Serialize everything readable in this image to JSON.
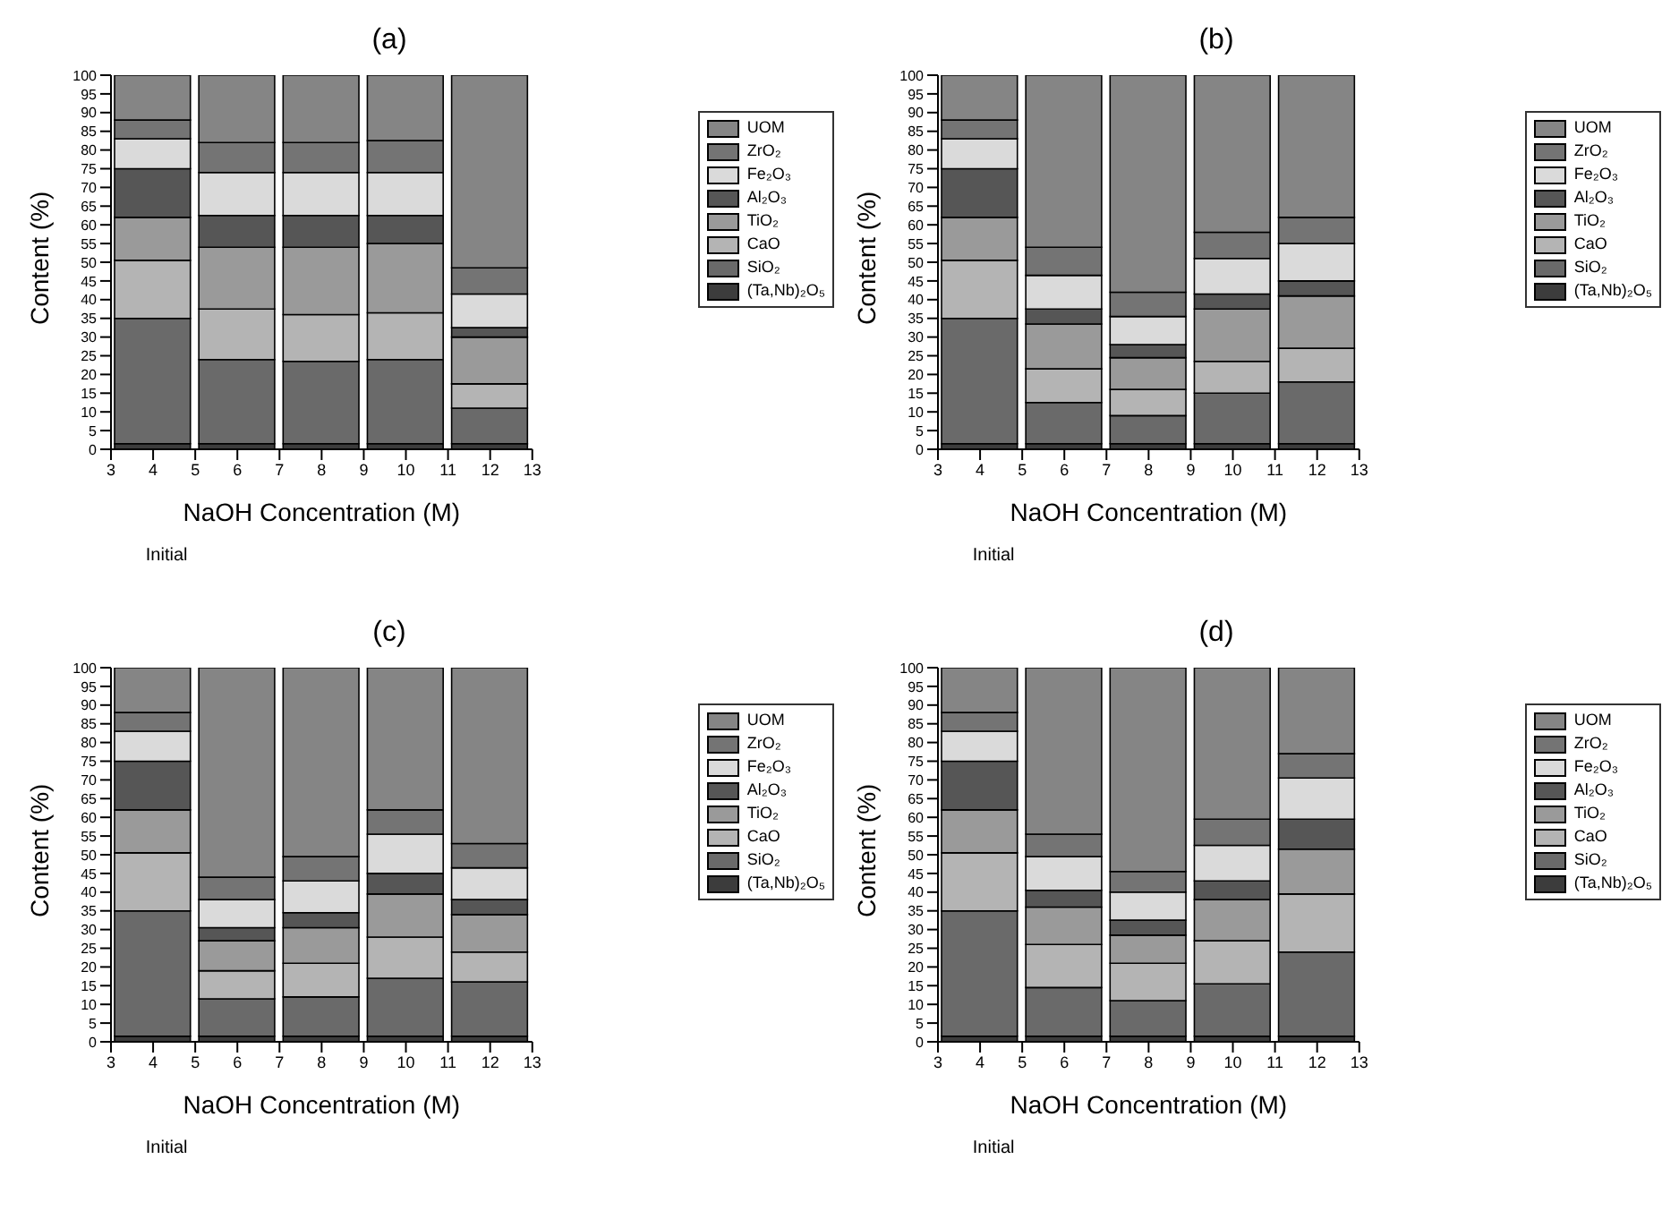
{
  "chart_data": [
    {
      "type": "bar",
      "title": "(a)",
      "xlabel": "NaOH Concentration (M)",
      "ylabel": "Content (%)",
      "stacked": true,
      "x": [
        4,
        6,
        8,
        10,
        12
      ],
      "xlim": [
        3,
        13
      ],
      "xticks": [
        3,
        4,
        5,
        6,
        7,
        8,
        9,
        10,
        11,
        12,
        13
      ],
      "ylim": [
        0,
        100
      ],
      "yticks": [
        0,
        5,
        10,
        15,
        20,
        25,
        30,
        35,
        40,
        45,
        50,
        55,
        60,
        65,
        70,
        75,
        80,
        85,
        90,
        95,
        100
      ],
      "legend": "right",
      "annotations": [
        "Initial"
      ],
      "series": [
        {
          "name": "(Ta,Nb)₂O₅",
          "color": "#3c3c3c",
          "values": [
            1.5,
            1.5,
            1.5,
            1.5,
            1.5
          ]
        },
        {
          "name": "SiO₂",
          "color": "#6a6a6a",
          "values": [
            33.5,
            22.5,
            22,
            22.5,
            9.5
          ]
        },
        {
          "name": "CaO",
          "color": "#b4b4b4",
          "values": [
            15.5,
            13.5,
            12.5,
            12.5,
            6.5
          ]
        },
        {
          "name": "TiO₂",
          "color": "#9a9a9a",
          "values": [
            11.5,
            16.5,
            18,
            18.5,
            12.5
          ]
        },
        {
          "name": "Al₂O₃",
          "color": "#565656",
          "values": [
            13,
            8.5,
            8.5,
            7.5,
            2.5
          ]
        },
        {
          "name": "Fe₂O₃",
          "color": "#dadada",
          "values": [
            8,
            11.5,
            11.5,
            11.5,
            9
          ]
        },
        {
          "name": "ZrO₂",
          "color": "#747474",
          "values": [
            5,
            8,
            8,
            8.5,
            7
          ]
        },
        {
          "name": "UOM",
          "color": "#858585",
          "values": [
            12,
            18,
            18,
            17.5,
            51.5
          ]
        }
      ]
    },
    {
      "type": "bar",
      "title": "(b)",
      "xlabel": "NaOH Concentration (M)",
      "ylabel": "Content (%)",
      "stacked": true,
      "x": [
        4,
        6,
        8,
        10,
        12
      ],
      "xlim": [
        3,
        13
      ],
      "xticks": [
        3,
        4,
        5,
        6,
        7,
        8,
        9,
        10,
        11,
        12,
        13
      ],
      "ylim": [
        0,
        100
      ],
      "yticks": [
        0,
        5,
        10,
        15,
        20,
        25,
        30,
        35,
        40,
        45,
        50,
        55,
        60,
        65,
        70,
        75,
        80,
        85,
        90,
        95,
        100
      ],
      "legend": "right",
      "annotations": [
        "Initial"
      ],
      "series": [
        {
          "name": "(Ta,Nb)₂O₅",
          "color": "#3c3c3c",
          "values": [
            1.5,
            1.5,
            1.5,
            1.5,
            1.5
          ]
        },
        {
          "name": "SiO₂",
          "color": "#6a6a6a",
          "values": [
            33.5,
            11,
            7.5,
            13.5,
            16.5
          ]
        },
        {
          "name": "CaO",
          "color": "#b4b4b4",
          "values": [
            15.5,
            9,
            7,
            8.5,
            9
          ]
        },
        {
          "name": "TiO₂",
          "color": "#9a9a9a",
          "values": [
            11.5,
            12,
            8.5,
            14,
            14
          ]
        },
        {
          "name": "Al₂O₃",
          "color": "#565656",
          "values": [
            13,
            4,
            3.5,
            4,
            4
          ]
        },
        {
          "name": "Fe₂O₃",
          "color": "#dadada",
          "values": [
            8,
            9,
            7.5,
            9.5,
            10
          ]
        },
        {
          "name": "ZrO₂",
          "color": "#747474",
          "values": [
            5,
            7.5,
            6.5,
            7,
            7
          ]
        },
        {
          "name": "UOM",
          "color": "#858585",
          "values": [
            12,
            46,
            58,
            42,
            38
          ]
        }
      ]
    },
    {
      "type": "bar",
      "title": "(c)",
      "xlabel": "NaOH Concentration (M)",
      "ylabel": "Content (%)",
      "stacked": true,
      "x": [
        4,
        6,
        8,
        10,
        12
      ],
      "xlim": [
        3,
        13
      ],
      "xticks": [
        3,
        4,
        5,
        6,
        7,
        8,
        9,
        10,
        11,
        12,
        13
      ],
      "ylim": [
        0,
        100
      ],
      "yticks": [
        0,
        5,
        10,
        15,
        20,
        25,
        30,
        35,
        40,
        45,
        50,
        55,
        60,
        65,
        70,
        75,
        80,
        85,
        90,
        95,
        100
      ],
      "legend": "right",
      "annotations": [
        "Initial"
      ],
      "series": [
        {
          "name": "(Ta,Nb)₂O₅",
          "color": "#3c3c3c",
          "values": [
            1.5,
            1.5,
            1.5,
            1.5,
            1.5
          ]
        },
        {
          "name": "SiO₂",
          "color": "#6a6a6a",
          "values": [
            33.5,
            10,
            10.5,
            15.5,
            14.5
          ]
        },
        {
          "name": "CaO",
          "color": "#b4b4b4",
          "values": [
            15.5,
            7.5,
            9,
            11,
            8
          ]
        },
        {
          "name": "TiO₂",
          "color": "#9a9a9a",
          "values": [
            11.5,
            8,
            9.5,
            11.5,
            10
          ]
        },
        {
          "name": "Al₂O₃",
          "color": "#565656",
          "values": [
            13,
            3.5,
            4,
            5.5,
            4
          ]
        },
        {
          "name": "Fe₂O₃",
          "color": "#dadada",
          "values": [
            8,
            7.5,
            8.5,
            10.5,
            8.5
          ]
        },
        {
          "name": "ZrO₂",
          "color": "#747474",
          "values": [
            5,
            6,
            6.5,
            6.5,
            6.5
          ]
        },
        {
          "name": "UOM",
          "color": "#858585",
          "values": [
            12,
            56,
            50.5,
            38,
            47
          ]
        }
      ]
    },
    {
      "type": "bar",
      "title": "(d)",
      "xlabel": "NaOH Concentration (M)",
      "ylabel": "Content (%)",
      "stacked": true,
      "x": [
        4,
        6,
        8,
        10,
        12
      ],
      "xlim": [
        3,
        13
      ],
      "xticks": [
        3,
        4,
        5,
        6,
        7,
        8,
        9,
        10,
        11,
        12,
        13
      ],
      "ylim": [
        0,
        100
      ],
      "yticks": [
        0,
        5,
        10,
        15,
        20,
        25,
        30,
        35,
        40,
        45,
        50,
        55,
        60,
        65,
        70,
        75,
        80,
        85,
        90,
        95,
        100
      ],
      "legend": "right",
      "annotations": [
        "Initial"
      ],
      "series": [
        {
          "name": "(Ta,Nb)₂O₅",
          "color": "#3c3c3c",
          "values": [
            1.5,
            1.5,
            1.5,
            1.5,
            1.5
          ]
        },
        {
          "name": "SiO₂",
          "color": "#6a6a6a",
          "values": [
            33.5,
            13,
            9.5,
            14,
            22.5
          ]
        },
        {
          "name": "CaO",
          "color": "#b4b4b4",
          "values": [
            15.5,
            11.5,
            10,
            11.5,
            15.5
          ]
        },
        {
          "name": "TiO₂",
          "color": "#9a9a9a",
          "values": [
            11.5,
            10,
            7.5,
            11,
            12
          ]
        },
        {
          "name": "Al₂O₃",
          "color": "#565656",
          "values": [
            13,
            4.5,
            4,
            5,
            8
          ]
        },
        {
          "name": "Fe₂O₃",
          "color": "#dadada",
          "values": [
            8,
            9,
            7.5,
            9.5,
            11
          ]
        },
        {
          "name": "ZrO₂",
          "color": "#747474",
          "values": [
            5,
            6,
            5.5,
            7,
            6.5
          ]
        },
        {
          "name": "UOM",
          "color": "#858585",
          "values": [
            12,
            44.5,
            54.5,
            40.5,
            23
          ]
        }
      ]
    }
  ]
}
